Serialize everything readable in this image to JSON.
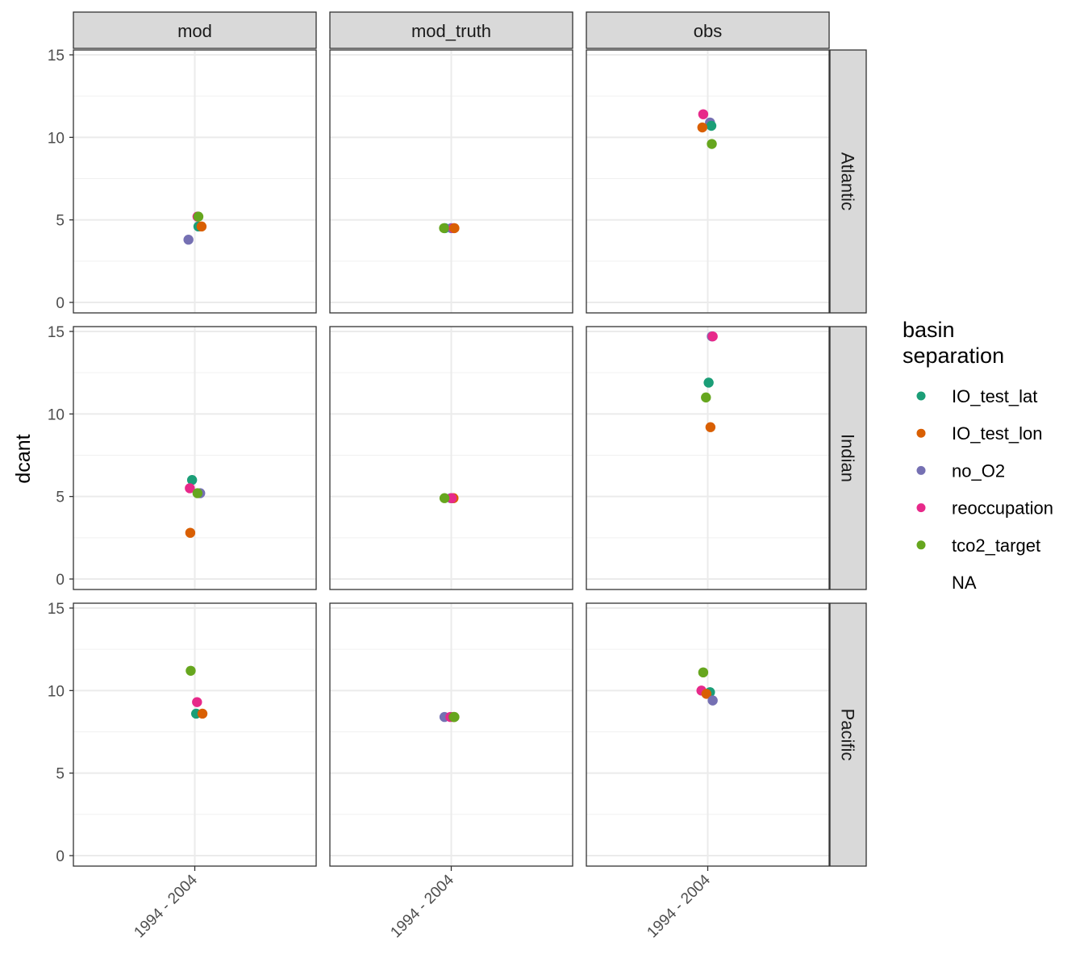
{
  "chart_data": {
    "type": "scatter",
    "facet_columns": [
      "mod",
      "mod_truth",
      "obs"
    ],
    "facet_rows": [
      "Atlantic",
      "Indian",
      "Pacific"
    ],
    "x_category": "1994 - 2004",
    "ylabel": "dcant",
    "xlabel": "",
    "ylim": [
      0,
      15
    ],
    "y_ticks": [
      0,
      5,
      10,
      15
    ],
    "grid": true,
    "legend": {
      "title_lines": [
        "basin",
        "separation"
      ],
      "position": "right",
      "entries": [
        {
          "label": "IO_test_lat",
          "color": "#1B9E77"
        },
        {
          "label": "IO_test_lon",
          "color": "#D95F02"
        },
        {
          "label": "no_O2",
          "color": "#7570B3"
        },
        {
          "label": "reoccupation",
          "color": "#E7298A"
        },
        {
          "label": "tco2_target",
          "color": "#66A61E"
        },
        {
          "label": "NA",
          "color": ""
        }
      ]
    },
    "points": [
      {
        "col": "mod",
        "row": "Atlantic",
        "series": "no_O2",
        "jitter": -0.28,
        "y": 3.8
      },
      {
        "col": "mod",
        "row": "Atlantic",
        "series": "IO_test_lat",
        "jitter": 0.16,
        "y": 4.6
      },
      {
        "col": "mod",
        "row": "Atlantic",
        "series": "IO_test_lon",
        "jitter": 0.3,
        "y": 4.6
      },
      {
        "col": "mod",
        "row": "Atlantic",
        "series": "reoccupation",
        "jitter": 0.12,
        "y": 5.2
      },
      {
        "col": "mod",
        "row": "Atlantic",
        "series": "tco2_target",
        "jitter": 0.16,
        "y": 5.2
      },
      {
        "col": "mod_truth",
        "row": "Atlantic",
        "series": "IO_test_lat",
        "jitter": -0.28,
        "y": 4.5
      },
      {
        "col": "mod_truth",
        "row": "Atlantic",
        "series": "no_O2",
        "jitter": 0.0,
        "y": 4.5
      },
      {
        "col": "mod_truth",
        "row": "Atlantic",
        "series": "reoccupation",
        "jitter": 0.1,
        "y": 4.5
      },
      {
        "col": "mod_truth",
        "row": "Atlantic",
        "series": "IO_test_lon",
        "jitter": 0.14,
        "y": 4.5
      },
      {
        "col": "mod_truth",
        "row": "Atlantic",
        "series": "tco2_target",
        "jitter": -0.32,
        "y": 4.5
      },
      {
        "col": "obs",
        "row": "Atlantic",
        "series": "reoccupation",
        "jitter": -0.2,
        "y": 11.4
      },
      {
        "col": "obs",
        "row": "Atlantic",
        "series": "no_O2",
        "jitter": 0.1,
        "y": 10.9
      },
      {
        "col": "obs",
        "row": "Atlantic",
        "series": "IO_test_lat",
        "jitter": 0.16,
        "y": 10.7
      },
      {
        "col": "obs",
        "row": "Atlantic",
        "series": "IO_test_lon",
        "jitter": -0.24,
        "y": 10.6
      },
      {
        "col": "obs",
        "row": "Atlantic",
        "series": "tco2_target",
        "jitter": 0.18,
        "y": 9.6
      },
      {
        "col": "mod",
        "row": "Indian",
        "series": "IO_test_lat",
        "jitter": -0.12,
        "y": 6.0
      },
      {
        "col": "mod",
        "row": "Indian",
        "series": "reoccupation",
        "jitter": -0.22,
        "y": 5.5
      },
      {
        "col": "mod",
        "row": "Indian",
        "series": "no_O2",
        "jitter": 0.24,
        "y": 5.2
      },
      {
        "col": "mod",
        "row": "Indian",
        "series": "tco2_target",
        "jitter": 0.12,
        "y": 5.2
      },
      {
        "col": "mod",
        "row": "Indian",
        "series": "IO_test_lon",
        "jitter": -0.2,
        "y": 2.8
      },
      {
        "col": "mod_truth",
        "row": "Indian",
        "series": "no_O2",
        "jitter": -0.02,
        "y": 4.9
      },
      {
        "col": "mod_truth",
        "row": "Indian",
        "series": "IO_test_lat",
        "jitter": 0.06,
        "y": 4.9
      },
      {
        "col": "mod_truth",
        "row": "Indian",
        "series": "IO_test_lon",
        "jitter": 0.1,
        "y": 4.9
      },
      {
        "col": "mod_truth",
        "row": "Indian",
        "series": "reoccupation",
        "jitter": 0.02,
        "y": 4.9
      },
      {
        "col": "mod_truth",
        "row": "Indian",
        "series": "tco2_target",
        "jitter": -0.3,
        "y": 4.9
      },
      {
        "col": "obs",
        "row": "Indian",
        "series": "no_O2",
        "jitter": 0.18,
        "y": 14.7
      },
      {
        "col": "obs",
        "row": "Indian",
        "series": "reoccupation",
        "jitter": 0.22,
        "y": 14.7
      },
      {
        "col": "obs",
        "row": "Indian",
        "series": "IO_test_lat",
        "jitter": 0.04,
        "y": 11.9
      },
      {
        "col": "obs",
        "row": "Indian",
        "series": "tco2_target",
        "jitter": -0.08,
        "y": 11.0
      },
      {
        "col": "obs",
        "row": "Indian",
        "series": "IO_test_lon",
        "jitter": 0.12,
        "y": 9.2
      },
      {
        "col": "mod",
        "row": "Pacific",
        "series": "tco2_target",
        "jitter": -0.18,
        "y": 11.2
      },
      {
        "col": "mod",
        "row": "Pacific",
        "series": "reoccupation",
        "jitter": 0.1,
        "y": 9.3
      },
      {
        "col": "mod",
        "row": "Pacific",
        "series": "IO_test_lat",
        "jitter": 0.06,
        "y": 8.6
      },
      {
        "col": "mod",
        "row": "Pacific",
        "series": "IO_test_lon",
        "jitter": 0.34,
        "y": 8.6
      },
      {
        "col": "mod_truth",
        "row": "Pacific",
        "series": "no_O2",
        "jitter": -0.3,
        "y": 8.4
      },
      {
        "col": "mod_truth",
        "row": "Pacific",
        "series": "reoccupation",
        "jitter": -0.04,
        "y": 8.4
      },
      {
        "col": "mod_truth",
        "row": "Pacific",
        "series": "IO_test_lat",
        "jitter": 0.1,
        "y": 8.4
      },
      {
        "col": "mod_truth",
        "row": "Pacific",
        "series": "IO_test_lon",
        "jitter": 0.12,
        "y": 8.4
      },
      {
        "col": "mod_truth",
        "row": "Pacific",
        "series": "tco2_target",
        "jitter": 0.14,
        "y": 8.4
      },
      {
        "col": "obs",
        "row": "Pacific",
        "series": "tco2_target",
        "jitter": -0.2,
        "y": 11.1
      },
      {
        "col": "obs",
        "row": "Pacific",
        "series": "reoccupation",
        "jitter": -0.28,
        "y": 10.0
      },
      {
        "col": "obs",
        "row": "Pacific",
        "series": "IO_test_lat",
        "jitter": 0.1,
        "y": 9.9
      },
      {
        "col": "obs",
        "row": "Pacific",
        "series": "IO_test_lon",
        "jitter": -0.06,
        "y": 9.8
      },
      {
        "col": "obs",
        "row": "Pacific",
        "series": "no_O2",
        "jitter": 0.22,
        "y": 9.4
      }
    ]
  }
}
